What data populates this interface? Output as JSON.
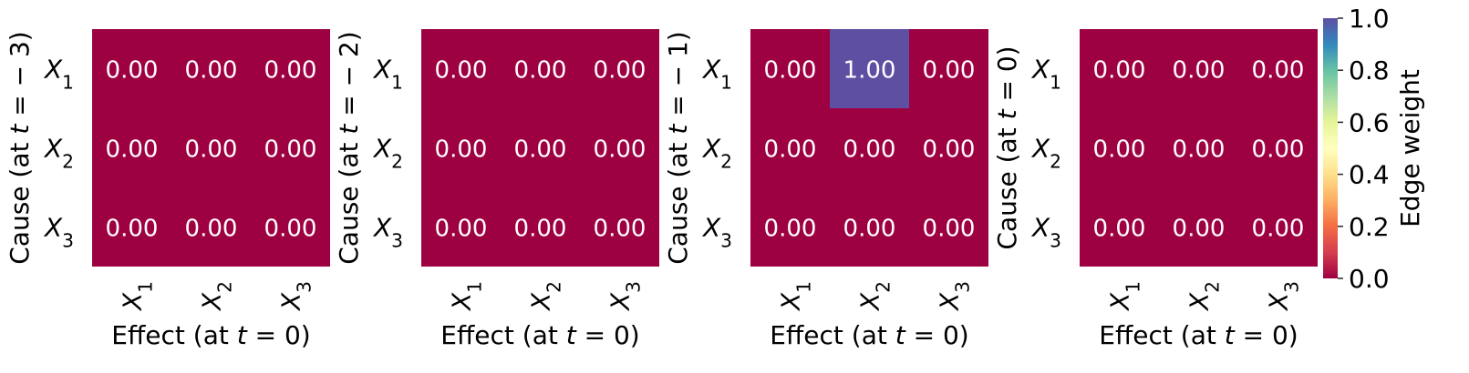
{
  "chart_data": [
    {
      "type": "heatmap",
      "ylabel": "Cause (at t = − 3)",
      "xlabel": "Effect (at t = 0)",
      "row_labels": [
        "X1",
        "X2",
        "X3"
      ],
      "col_labels": [
        "X1",
        "X2",
        "X3"
      ],
      "values": [
        [
          0,
          0,
          0
        ],
        [
          0,
          0,
          0
        ],
        [
          0,
          0,
          0
        ]
      ]
    },
    {
      "type": "heatmap",
      "ylabel": "Cause (at t = − 2)",
      "xlabel": "Effect (at t = 0)",
      "row_labels": [
        "X1",
        "X2",
        "X3"
      ],
      "col_labels": [
        "X1",
        "X2",
        "X3"
      ],
      "values": [
        [
          0,
          0,
          0
        ],
        [
          0,
          0,
          0
        ],
        [
          0,
          0,
          0
        ]
      ]
    },
    {
      "type": "heatmap",
      "ylabel": "Cause (at t = − 1)",
      "xlabel": "Effect (at t = 0)",
      "row_labels": [
        "X1",
        "X2",
        "X3"
      ],
      "col_labels": [
        "X1",
        "X2",
        "X3"
      ],
      "values": [
        [
          0,
          1,
          0
        ],
        [
          0,
          0,
          0
        ],
        [
          0,
          0,
          0
        ]
      ]
    },
    {
      "type": "heatmap",
      "ylabel": "Cause (at t = 0)",
      "xlabel": "Effect (at t = 0)",
      "row_labels": [
        "X1",
        "X2",
        "X3"
      ],
      "col_labels": [
        "X1",
        "X2",
        "X3"
      ],
      "values": [
        [
          0,
          0,
          0
        ],
        [
          0,
          0,
          0
        ],
        [
          0,
          0,
          0
        ]
      ]
    }
  ],
  "colorbar": {
    "label": "Edge weight",
    "range": [
      0,
      1
    ],
    "ticks": [
      "0.0",
      "0.2",
      "0.4",
      "0.6",
      "0.8",
      "1.0"
    ],
    "colormap": "Spectral",
    "low_color": "#9e0142",
    "high_color": "#5e4fa2"
  },
  "value_format_decimals": 2,
  "cell_text_color": "#ffffff"
}
